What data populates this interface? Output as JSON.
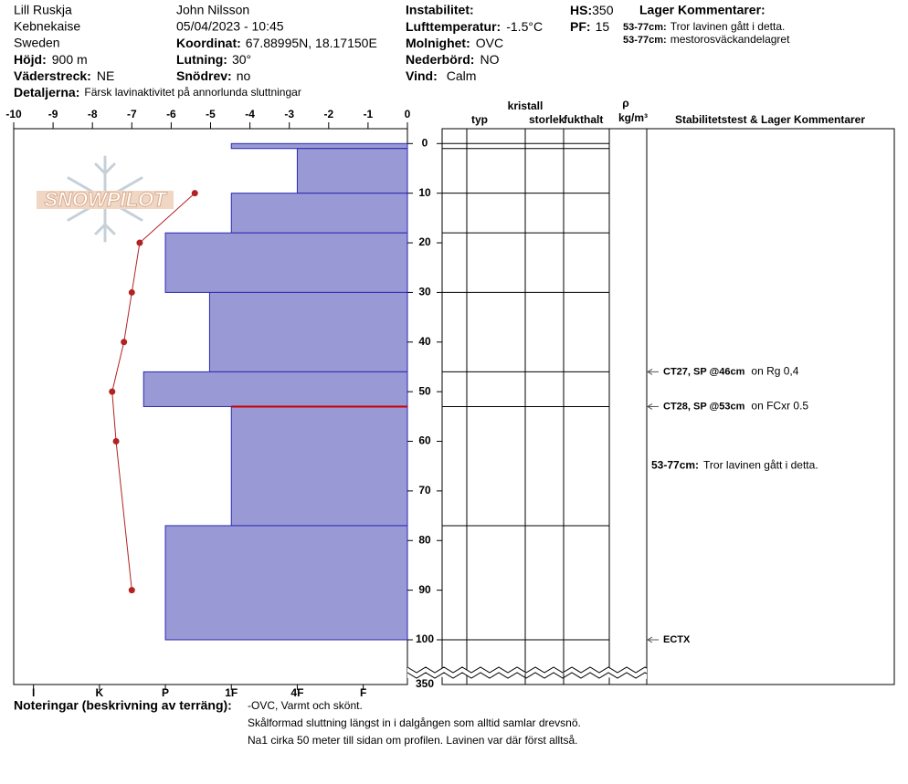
{
  "header": {
    "place": "Lill Ruskja",
    "range": "Kebnekaise",
    "country": "Sweden",
    "elevation": {
      "label": "Höjd:",
      "value": "900 m"
    },
    "aspect": {
      "label": "Väderstreck:",
      "value": "NE"
    },
    "details": {
      "label": "Detaljerna:",
      "value": "Färsk lavinaktivitet på annorlunda sluttningar"
    },
    "observer": "John Nilsson",
    "datetime": "05/04/2023 - 10:45",
    "coordinates": {
      "label": "Koordinat:",
      "value": "67.88995N, 18.17150E"
    },
    "slope": {
      "label": "Lutning:",
      "value": "30°"
    },
    "wind_loading": {
      "label": "Snödrev:",
      "value": "no"
    },
    "instability": {
      "label": "Instabilitet:"
    },
    "air_temperature": {
      "label": "Lufttemperatur:",
      "value": "-1.5°C"
    },
    "sky": {
      "label": "Molnighet:",
      "value": "OVC"
    },
    "precipitation": {
      "label": "Nederbörd:",
      "value": "NO"
    },
    "wind": {
      "label": "Vind:",
      "value": "Calm"
    },
    "hs": {
      "label": "HS:",
      "value": 350
    },
    "pf": {
      "label": "PF:",
      "value": 15
    },
    "layer_comments": {
      "title": "Lager Kommentarer:",
      "items": [
        {
          "label": "53-77cm:",
          "text": "Tror lavinen gått i detta."
        },
        {
          "label": "53-77cm:",
          "text": "mestorosväckandelagret"
        }
      ]
    }
  },
  "watermark": "SNOWPILOT",
  "grain_columns": {
    "crystal": "kristall",
    "type": "typ",
    "size": "storlek",
    "moisture": "fukthalt",
    "density": "ρ",
    "density_unit": "kg/m³",
    "stability": "Stabilitetstest & Lager Kommentarer"
  },
  "chart_data": [
    {
      "type": "hardness",
      "layers": [
        {
          "top": 0,
          "bottom": 1,
          "hardness": 3
        },
        {
          "top": 1,
          "bottom": 10,
          "hardness": 2
        },
        {
          "top": 10,
          "bottom": 18,
          "hardness": 3
        },
        {
          "top": 18,
          "bottom": 30,
          "hardness": 4
        },
        {
          "top": 30,
          "bottom": 46,
          "hardness": 3.33
        },
        {
          "top": 46,
          "bottom": 53,
          "hardness": 4.33
        },
        {
          "top": 53,
          "bottom": 77,
          "hardness": 3
        },
        {
          "top": 77,
          "bottom": 100,
          "hardness": 4
        }
      ],
      "color": "#9999d6",
      "edge_color": "#2b2bb0",
      "highlight_depth": 53,
      "highlight_color": "#cc0000",
      "xlim": [
        6.3,
        0.33
      ],
      "xticks": [
        {
          "value": 6,
          "label": "I"
        },
        {
          "value": 5,
          "label": "K"
        },
        {
          "value": 4,
          "label": "P"
        },
        {
          "value": 3,
          "label": "1F"
        },
        {
          "value": 2,
          "label": "4F"
        },
        {
          "value": 1,
          "label": "F"
        }
      ],
      "ylim": [
        -3,
        350
      ],
      "axis_break": [
        100,
        350
      ],
      "yticks": [
        0,
        10,
        20,
        30,
        40,
        50,
        60,
        70,
        80,
        90,
        100,
        350
      ]
    },
    {
      "type": "line",
      "x": [
        -5.4,
        -6.8,
        -7.0,
        -7.2,
        -7.5,
        -7.4,
        -7.0
      ],
      "y": [
        10,
        20,
        30,
        40,
        50,
        60,
        90
      ],
      "color": "#b22222",
      "xlim": [
        -10,
        0
      ],
      "xticks": [
        -10,
        -9,
        -8,
        -7,
        -6,
        -5,
        -4,
        -3,
        -2,
        -1,
        0
      ]
    }
  ],
  "stability_tests": [
    {
      "depth": 46,
      "result": "CT27, SP @46cm",
      "comment": "on Rg 0,4"
    },
    {
      "depth": 53,
      "result": "CT28, SP @53cm",
      "comment": "on FCxr 0.5"
    },
    {
      "depth": 100,
      "result": "ECTX"
    }
  ],
  "layer_notes": [
    {
      "top": 53,
      "bottom": 77,
      "label": "53-77cm:",
      "text": "Tror lavinen gått i detta."
    }
  ],
  "notes": {
    "label": "Noteringar (beskrivning av terräng):",
    "lines": [
      "-OVC, Varmt och skönt.",
      "Skålformad sluttning längst in i dalgången som alltid samlar drevsnö.",
      "Na1 cirka 50 meter till sidan om profilen. Lavinen var där först alltså."
    ]
  }
}
